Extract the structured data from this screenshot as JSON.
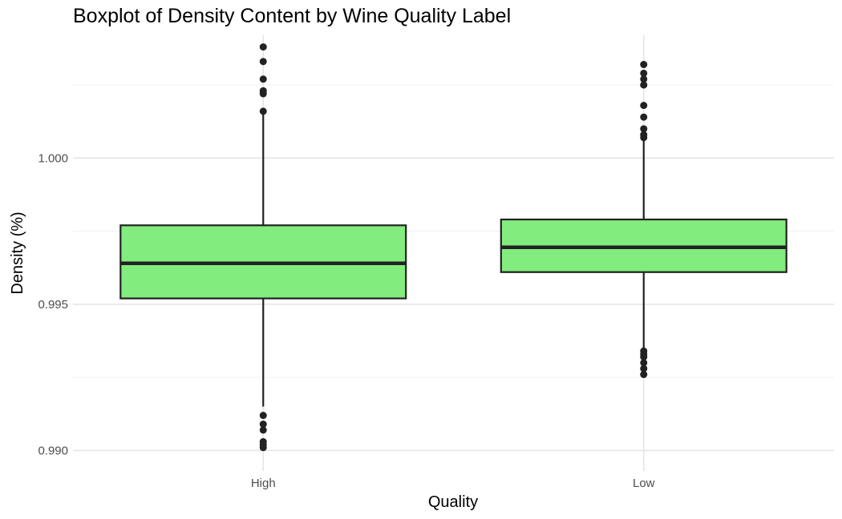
{
  "chart_data": {
    "type": "boxplot",
    "title": "Boxplot of Density Content by Wine Quality Label",
    "xlabel": "Quality",
    "ylabel": "Density (%)",
    "ylim": [
      0.9893,
      1.0042
    ],
    "yticks": [
      0.99,
      0.995,
      1.0
    ],
    "ytick_labels": [
      "0.990",
      "0.995",
      "1.000"
    ],
    "grid": true,
    "legend": "none",
    "fill_color": "#82ec7e",
    "line_color": "#222222",
    "categories": [
      "High",
      "Low"
    ],
    "boxes": [
      {
        "category": "High",
        "whisker_low": 0.9915,
        "q1": 0.9952,
        "median": 0.9964,
        "q3": 0.9977,
        "whisker_high": 1.0016,
        "outliers": [
          1.0038,
          1.0033,
          1.0027,
          1.0023,
          1.0022,
          1.0016,
          0.9912,
          0.9909,
          0.9907,
          0.9903,
          0.9902,
          0.9901
        ]
      },
      {
        "category": "Low",
        "whisker_low": 0.9935,
        "q1": 0.9961,
        "median": 0.99695,
        "q3": 0.9979,
        "whisker_high": 1.0006,
        "outliers": [
          1.0032,
          1.0029,
          1.0027,
          1.0025,
          1.0018,
          1.0014,
          1.001,
          1.0008,
          1.0007,
          0.9934,
          0.9933,
          0.9932,
          0.993,
          0.9928,
          0.9926
        ]
      }
    ]
  }
}
